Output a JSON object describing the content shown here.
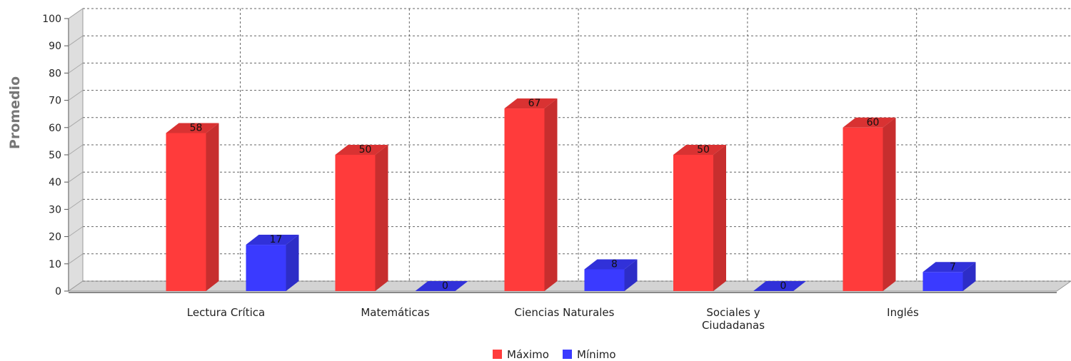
{
  "chart_data": {
    "type": "bar",
    "title": "",
    "xlabel": "",
    "ylabel": "Promedio",
    "ylim": [
      0,
      100
    ],
    "yticks": [
      0,
      10,
      20,
      30,
      40,
      50,
      60,
      70,
      80,
      90,
      100
    ],
    "grid": true,
    "legend_position": "bottom-center",
    "categories": [
      [
        "Lectura Crítica"
      ],
      [
        "Matemáticas"
      ],
      [
        "Ciencias Naturales"
      ],
      [
        "Sociales y",
        "Ciudadanas"
      ],
      [
        "Inglés"
      ]
    ],
    "series": [
      {
        "name": "Máximo",
        "color": "#ff3b3b",
        "values": [
          58,
          50,
          67,
          50,
          60
        ]
      },
      {
        "name": "Mínimo",
        "color": "#3a3aff",
        "values": [
          17,
          0,
          8,
          0,
          7
        ]
      }
    ]
  }
}
